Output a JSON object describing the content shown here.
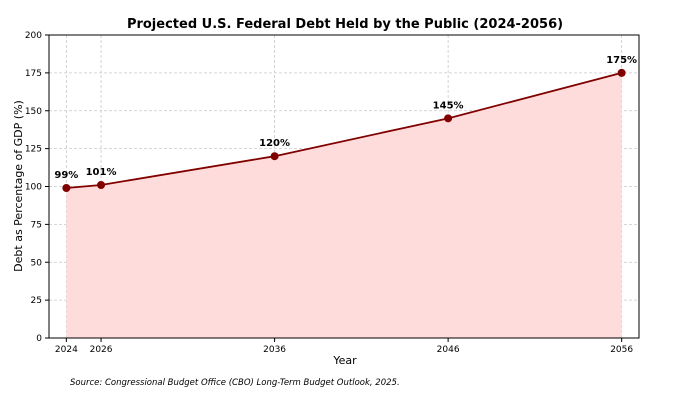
{
  "chart_data": {
    "type": "line",
    "title": "Projected U.S. Federal Debt Held by the Public (2024-2056)",
    "xlabel": "Year",
    "ylabel": "Debt as Percentage of GDP (%)",
    "x": [
      2024,
      2026,
      2036,
      2046,
      2056
    ],
    "xticks": [
      "2024",
      "2026",
      "2036",
      "2046",
      "2056"
    ],
    "yticks": [
      "0",
      "25",
      "50",
      "75",
      "100",
      "125",
      "150",
      "175",
      "200"
    ],
    "ylim": [
      0,
      200
    ],
    "xlim": [
      2023,
      2057
    ],
    "grid": true,
    "area_fill": true,
    "series": [
      {
        "values": [
          99,
          101,
          120,
          145,
          175
        ]
      }
    ],
    "data_labels": [
      "99%",
      "101%",
      "120%",
      "145%",
      "175%"
    ],
    "colors": {
      "line": "#800000",
      "marker": "#800000",
      "fill": "#ffdcdc",
      "grid": "#c8c8c8"
    }
  },
  "source": "Source: Congressional Budget Office (CBO) Long-Term Budget Outlook, 2025."
}
